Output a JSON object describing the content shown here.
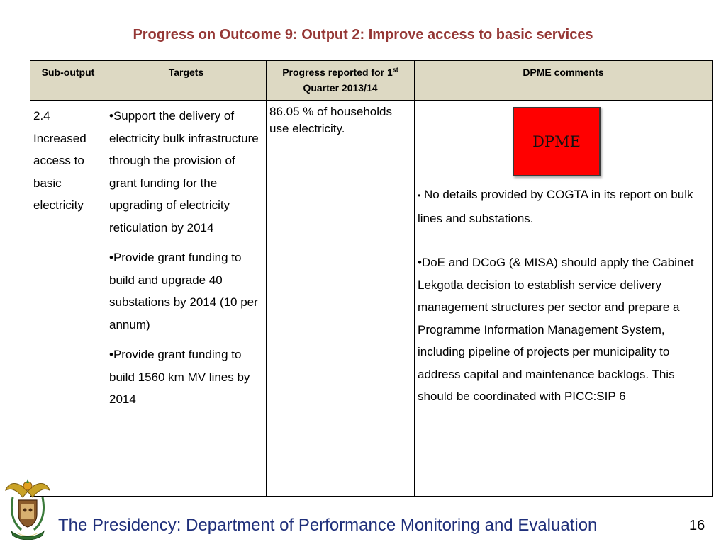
{
  "title": "Progress on Outcome 9: Output 2: Improve access to basic services",
  "table": {
    "headers": {
      "sub_output": "Sub-output",
      "targets": "Targets",
      "progress_main": "Progress reported for 1",
      "progress_sup": "st",
      "progress_tail": "Quarter 2013/14",
      "comments": "DPME comments"
    },
    "row": {
      "sub_output": "2.4 Increased access to basic electricity",
      "targets": [
        "•Support the delivery of electricity bulk infrastructure through the provision of grant funding for the upgrading of electricity reticulation by 2014",
        "•Provide grant funding to build and upgrade 40 substations by 2014 (10 per annum)",
        "•Provide grant funding to build 1560 km MV lines by 2014"
      ],
      "progress": "86.05 % of households use electricity.",
      "stamp_label": "DPME",
      "comment_1_bullet": "•",
      "comment_1": "No details provided by COGTA in its report on bulk lines and substations.",
      "comment_2": "•DoE and DCoG (& MISA) should apply the Cabinet Lekgotla  decision to establish service delivery management structures per sector and prepare a Programme Information Management System, including pipeline of projects per municipality to address capital and maintenance backlogs. This should be coordinated with  PICC:SIP 6"
    }
  },
  "footer": {
    "text": "The Presidency: Department of Performance Monitoring and Evaluation",
    "page_number": "16"
  },
  "colors": {
    "title": "#953735",
    "header_bg": "#ddd9c3",
    "stamp": "#ff0000",
    "footer_text": "#1f2f7a"
  },
  "icons": {
    "emblem": "coat-of-arms-icon"
  }
}
